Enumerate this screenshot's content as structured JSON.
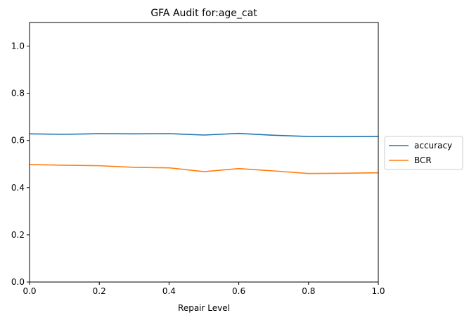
{
  "chart_data": {
    "type": "line",
    "title": "GFA Audit for:age_cat",
    "xlabel": "Repair Level",
    "ylabel": "",
    "xlim": [
      0,
      1
    ],
    "ylim": [
      0,
      1.1
    ],
    "x_ticks": [
      "0.0",
      "0.2",
      "0.4",
      "0.6",
      "0.8",
      "1.0"
    ],
    "y_ticks": [
      "0.0",
      "0.2",
      "0.4",
      "0.6",
      "0.8",
      "1.0"
    ],
    "grid": false,
    "legend_position": "right-outside",
    "x": [
      0.0,
      0.1,
      0.2,
      0.3,
      0.4,
      0.5,
      0.6,
      0.7,
      0.8,
      0.9,
      1.0
    ],
    "series": [
      {
        "name": "accuracy",
        "color": "#1f77b4",
        "values": [
          0.628,
          0.626,
          0.629,
          0.628,
          0.629,
          0.623,
          0.63,
          0.622,
          0.617,
          0.616,
          0.617
        ]
      },
      {
        "name": "BCR",
        "color": "#ff7f0e",
        "values": [
          0.498,
          0.495,
          0.493,
          0.486,
          0.484,
          0.468,
          0.481,
          0.471,
          0.46,
          0.461,
          0.463
        ]
      }
    ]
  }
}
